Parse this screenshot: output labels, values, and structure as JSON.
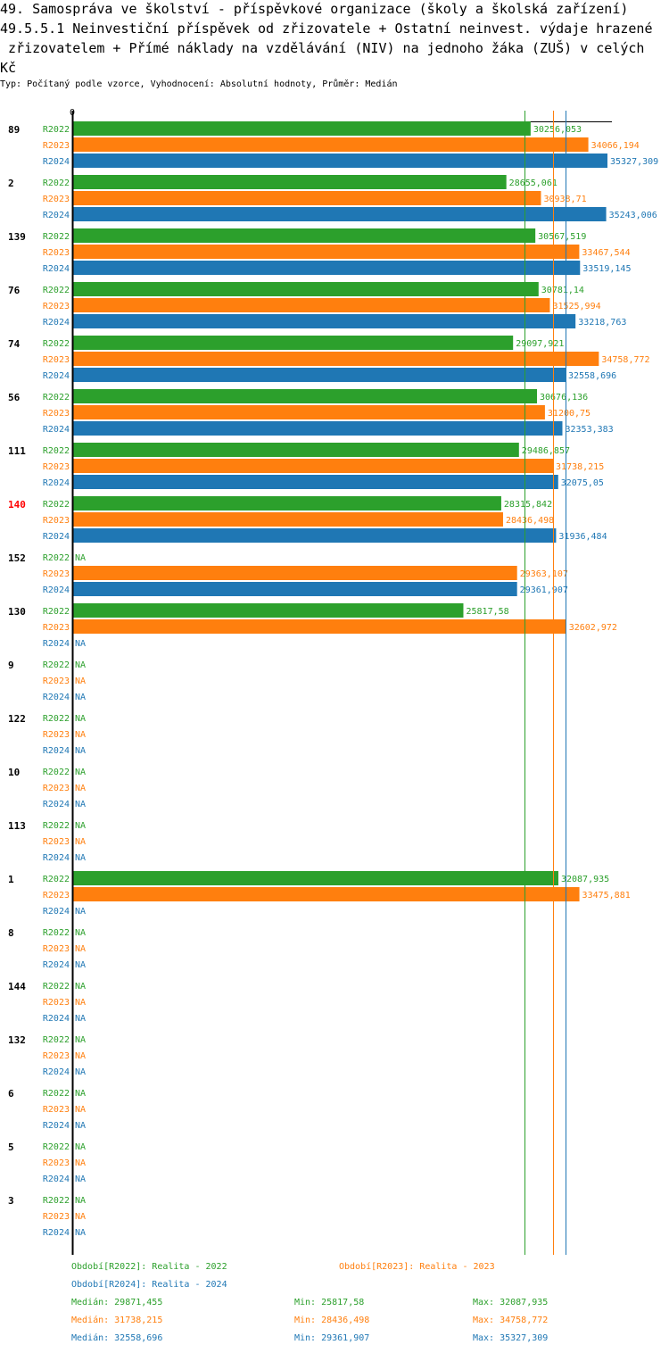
{
  "header": {
    "title_lines": [
      "49. Samospráva ve školství - příspěvkové organizace (školy a školská zařízení)",
      "49.5.5.1 Neinvestiční příspěvek od zřizovatele + Ostatní neinvest. výdaje hrazené",
      " zřizovatelem + Přímé náklady na vzdělávání (NIV) na jednoho žáka (ZUŠ) v celých",
      "Kč"
    ],
    "subtitle": "Typ: Počítaný podle vzorce, Vyhodnocení: Absolutní hodnoty, Průměr: Medián"
  },
  "chart_data": {
    "type": "bar",
    "orientation": "horizontal",
    "axis_zero_label": "0",
    "xlim": [
      0,
      35327.309
    ],
    "series": [
      {
        "name": "R2022",
        "color": "#2ca02c"
      },
      {
        "name": "R2023",
        "color": "#ff7f0e"
      },
      {
        "name": "R2024",
        "color": "#1f77b4"
      }
    ],
    "groups": [
      {
        "label": "89",
        "highlight": false,
        "values": [
          30256.053,
          34066.194,
          35327.309
        ],
        "texts": [
          "30256,053",
          "34066,194",
          "35327,309"
        ]
      },
      {
        "label": "2",
        "highlight": false,
        "values": [
          28655.061,
          30938.71,
          35243.006
        ],
        "texts": [
          "28655,061",
          "30938,71",
          "35243,006"
        ]
      },
      {
        "label": "139",
        "highlight": false,
        "values": [
          30567.519,
          33467.544,
          33519.145
        ],
        "texts": [
          "30567,519",
          "33467,544",
          "33519,145"
        ]
      },
      {
        "label": "76",
        "highlight": false,
        "values": [
          30781.14,
          31525.994,
          33218.763
        ],
        "texts": [
          "30781,14",
          "31525,994",
          "33218,763"
        ]
      },
      {
        "label": "74",
        "highlight": false,
        "values": [
          29097.921,
          34758.772,
          32558.696
        ],
        "texts": [
          "29097,921",
          "34758,772",
          "32558,696"
        ]
      },
      {
        "label": "56",
        "highlight": false,
        "values": [
          30676.136,
          31200.75,
          32353.383
        ],
        "texts": [
          "30676,136",
          "31200,75",
          "32353,383"
        ]
      },
      {
        "label": "111",
        "highlight": false,
        "values": [
          29486.857,
          31738.215,
          32075.05
        ],
        "texts": [
          "29486,857",
          "31738,215",
          "32075,05"
        ]
      },
      {
        "label": "140",
        "highlight": true,
        "values": [
          28315.842,
          28436.498,
          31936.484
        ],
        "texts": [
          "28315,842",
          "28436,498",
          "31936,484"
        ]
      },
      {
        "label": "152",
        "highlight": false,
        "values": [
          null,
          29363.107,
          29361.907
        ],
        "texts": [
          "NA",
          "29363,107",
          "29361,907"
        ]
      },
      {
        "label": "130",
        "highlight": false,
        "values": [
          25817.58,
          32602.972,
          null
        ],
        "texts": [
          "25817,58",
          "32602,972",
          "NA"
        ]
      },
      {
        "label": "9",
        "highlight": false,
        "values": [
          null,
          null,
          null
        ],
        "texts": [
          "NA",
          "NA",
          "NA"
        ]
      },
      {
        "label": "122",
        "highlight": false,
        "values": [
          null,
          null,
          null
        ],
        "texts": [
          "NA",
          "NA",
          "NA"
        ]
      },
      {
        "label": "10",
        "highlight": false,
        "values": [
          null,
          null,
          null
        ],
        "texts": [
          "NA",
          "NA",
          "NA"
        ]
      },
      {
        "label": "113",
        "highlight": false,
        "values": [
          null,
          null,
          null
        ],
        "texts": [
          "NA",
          "NA",
          "NA"
        ]
      },
      {
        "label": "1",
        "highlight": false,
        "values": [
          32087.935,
          33475.881,
          null
        ],
        "texts": [
          "32087,935",
          "33475,881",
          "NA"
        ]
      },
      {
        "label": "8",
        "highlight": false,
        "values": [
          null,
          null,
          null
        ],
        "texts": [
          "NA",
          "NA",
          "NA"
        ]
      },
      {
        "label": "144",
        "highlight": false,
        "values": [
          null,
          null,
          null
        ],
        "texts": [
          "NA",
          "NA",
          "NA"
        ]
      },
      {
        "label": "132",
        "highlight": false,
        "values": [
          null,
          null,
          null
        ],
        "texts": [
          "NA",
          "NA",
          "NA"
        ]
      },
      {
        "label": "6",
        "highlight": false,
        "values": [
          null,
          null,
          null
        ],
        "texts": [
          "NA",
          "NA",
          "NA"
        ]
      },
      {
        "label": "5",
        "highlight": false,
        "values": [
          null,
          null,
          null
        ],
        "texts": [
          "NA",
          "NA",
          "NA"
        ]
      },
      {
        "label": "3",
        "highlight": false,
        "values": [
          null,
          null,
          null
        ],
        "texts": [
          "NA",
          "NA",
          "NA"
        ]
      }
    ],
    "medians": [
      29871.455,
      31738.215,
      32558.696
    ],
    "legend": {
      "periods": [
        "Období[R2022]: Realita - 2022",
        "Období[R2023]: Realita - 2023",
        "Období[R2024]: Realita - 2024"
      ],
      "stats": [
        [
          "Medián: 29871,455",
          "Min: 25817,58",
          "Max: 32087,935"
        ],
        [
          "Medián: 31738,215",
          "Min: 28436,498",
          "Max: 34758,772"
        ],
        [
          "Medián: 32558,696",
          "Min: 29361,907",
          "Max: 35327,309"
        ]
      ]
    }
  }
}
